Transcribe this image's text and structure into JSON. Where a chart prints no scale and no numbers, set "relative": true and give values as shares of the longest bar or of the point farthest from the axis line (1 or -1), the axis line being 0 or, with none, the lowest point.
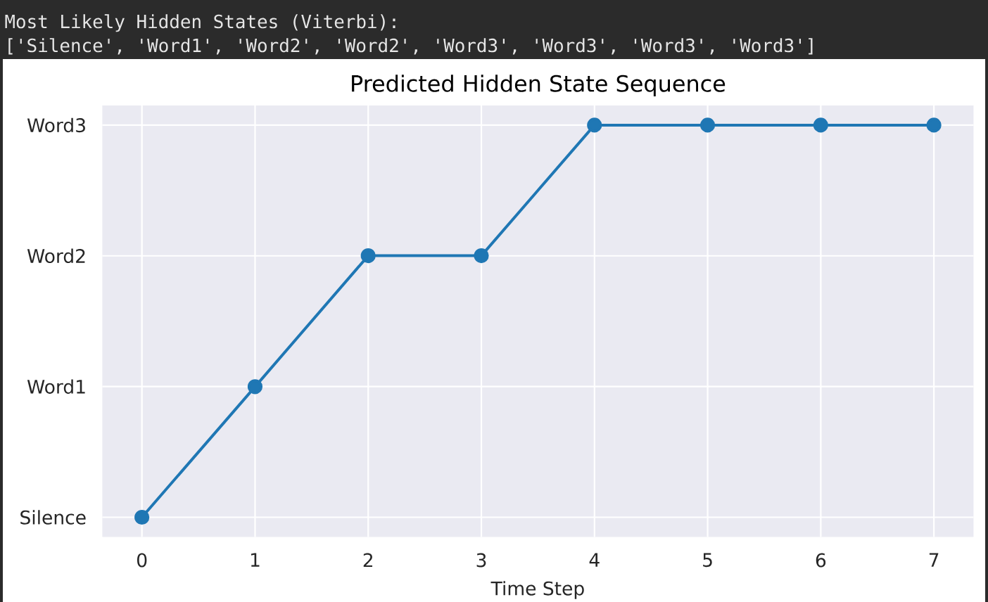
{
  "chart_data": {
    "type": "line",
    "title": "Predicted Hidden State Sequence",
    "xlabel": "Time Step",
    "annotations": [
      "Most Likely Hidden States (Viterbi):",
      "['Silence', 'Word1', 'Word2', 'Word2', 'Word3', 'Word3', 'Word3', 'Word3']",
      "Silence",
      "Word1",
      "Word2",
      "Word3"
    ],
    "x": [
      0,
      1,
      2,
      3,
      4,
      5,
      6,
      7
    ],
    "values": [
      0,
      0.333,
      0.667,
      0.667,
      1,
      1,
      1,
      1
    ],
    "color": "#1f77b4",
    "relative": true,
    "xlim": [
      -0.35,
      7.35
    ],
    "xticks": [
      0,
      1,
      2,
      3,
      4,
      5,
      6,
      7
    ],
    "grid": true,
    "marker": "circle",
    "line_style": "solid"
  }
}
